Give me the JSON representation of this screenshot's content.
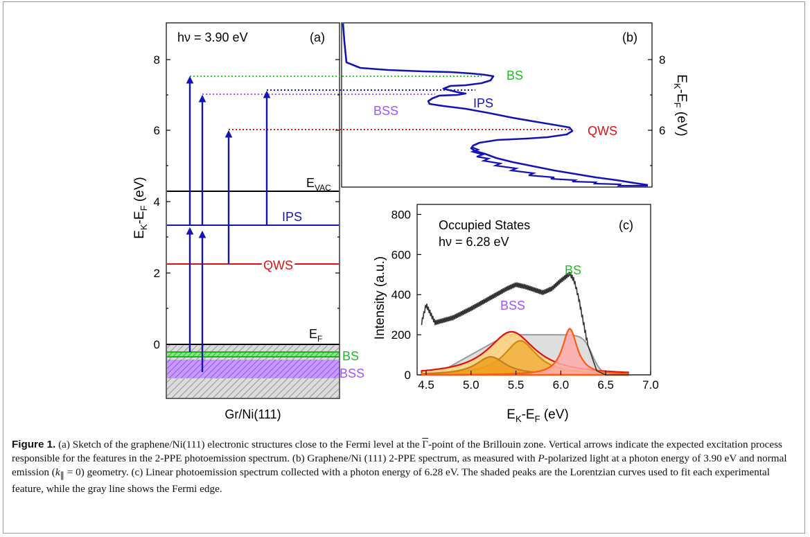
{
  "panel_a": {
    "label": "(a)",
    "photon": "hν = 3.90 eV",
    "ylabel_main": "E",
    "ylabel_sub1": "K",
    "ylabel_mid": "-E",
    "ylabel_sub2": "F",
    "ylabel_unit": " (eV)",
    "yticks": [
      "0",
      "2",
      "4",
      "6",
      "8"
    ],
    "xlabel": "Gr/Ni(111)",
    "levels": {
      "evac_main": "E",
      "evac_sub": "VAC",
      "ef_main": "E",
      "ef_sub": "F",
      "ips": "IPS",
      "qws": "QWS",
      "bs": "BS",
      "bss": "BSS"
    }
  },
  "panel_b": {
    "label": "(b)",
    "yticks": [
      "6",
      "8"
    ],
    "ylabel_main": "E",
    "ylabel_sub1": "K",
    "ylabel_mid": "-E",
    "ylabel_sub2": "F",
    "ylabel_unit": " (eV)",
    "bs": "BS",
    "ips": "IPS",
    "bss": "BSS",
    "qws": "QWS"
  },
  "panel_c": {
    "label": "(c)",
    "title1": "Occupied States",
    "title2": "hν = 6.28 eV",
    "ylabel": "Intensity (a.u.)",
    "xlabel_main": "E",
    "xlabel_sub1": "K",
    "xlabel_mid": "-E",
    "xlabel_sub2": "F",
    "xlabel_unit": " (eV)",
    "bs": "BS",
    "bss": "BSS"
  },
  "chart_data": [
    {
      "type": "line",
      "panel": "(b)",
      "ylabel": "EK-EF (eV)",
      "ylim": [
        4.4,
        9.0
      ],
      "yticks": [
        6,
        8
      ],
      "peaks": [
        {
          "name": "BS",
          "energy": 7.55
        },
        {
          "name": "IPS",
          "energy": 7.1
        },
        {
          "name": "BSS",
          "energy": 7.0
        },
        {
          "name": "QWS",
          "energy": 6.0
        }
      ]
    },
    {
      "type": "line",
      "panel": "(c)",
      "xlabel": "EK-EF (eV)",
      "ylabel": "Intensity (a.u.)",
      "xlim": [
        4.4,
        7.0
      ],
      "ylim": [
        0,
        850
      ],
      "xticks": [
        4.5,
        5.0,
        5.5,
        6.0,
        6.5,
        7.0
      ],
      "yticks": [
        0,
        200,
        400,
        600,
        800
      ],
      "series": [
        {
          "x": [
            4.45,
            4.5,
            4.6,
            4.8,
            5.0,
            5.2,
            5.4,
            5.5,
            5.6,
            5.8,
            5.9,
            6.0,
            6.1,
            6.15,
            6.2,
            6.3,
            6.4,
            6.5,
            6.6,
            7.0
          ],
          "y": [
            260,
            350,
            260,
            285,
            330,
            380,
            430,
            450,
            440,
            410,
            430,
            470,
            505,
            470,
            380,
            150,
            20,
            0,
            0,
            0
          ]
        }
      ],
      "fit_peaks": [
        {
          "center": 5.45,
          "height": 215
        },
        {
          "center": 5.55,
          "height": 170
        },
        {
          "center": 5.22,
          "height": 90
        },
        {
          "center": 6.1,
          "height": 230
        }
      ],
      "fermi_edge": {
        "level": 200,
        "edge": 6.35
      }
    }
  ],
  "caption": {
    "fig_label": "Figure 1.",
    "t1": " (a) Sketch of the graphene/Ni(111) electronic structures close to the Fermi level at the ",
    "gamma": "Γ",
    "t2": "-point of the Brillouin zone. Vertical arrows indicate the expected excitation process responsible for the features in the 2-PPE photoemission spectrum. (b) Graphene/Ni (111) 2-PPE spectrum, as measured with ",
    "p": "P",
    "t3": "-polarized light at a photon energy of 3.90 eV and normal emission (",
    "k": "k",
    "k_sub": "∥",
    "t4": " = 0) geometry. (c) Linear photoemission spectrum collected with a photon energy of 6.28 eV. The shaded peaks are the Lorentzian curves used to fit each experimental feature, while the gray line shows the Fermi edge."
  }
}
